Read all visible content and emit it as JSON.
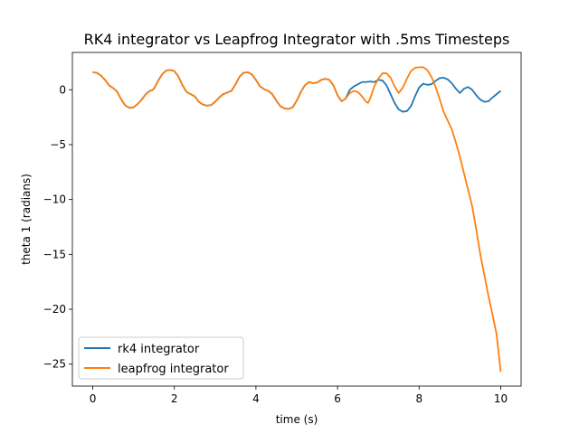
{
  "chart_data": {
    "type": "line",
    "title": "RK4 integrator vs Leapfrog Integrator with .5ms Timesteps",
    "xlabel": "time (s)",
    "ylabel": "theta 1  (radians)",
    "xlim": [
      -0.5,
      10.5
    ],
    "ylim": [
      -27.0,
      3.4
    ],
    "xticks": [
      0,
      2,
      4,
      6,
      8,
      10
    ],
    "yticks": [
      0,
      -5,
      -10,
      -15,
      -20,
      -25
    ],
    "xtick_labels": [
      "0",
      "2",
      "4",
      "6",
      "8",
      "10"
    ],
    "ytick_labels": [
      "0",
      "−5",
      "−10",
      "−15",
      "−20",
      "−25"
    ],
    "grid": false,
    "legend_position": "lower-left",
    "series": [
      {
        "name": "rk4 integrator",
        "color": "#1f77b4",
        "points": [
          [
            0,
            1.6
          ],
          [
            0.1,
            1.55
          ],
          [
            0.2,
            1.3
          ],
          [
            0.3,
            0.9
          ],
          [
            0.4,
            0.4
          ],
          [
            0.5,
            0.15
          ],
          [
            0.55,
            0.0
          ],
          [
            0.6,
            -0.2
          ],
          [
            0.7,
            -0.9
          ],
          [
            0.8,
            -1.45
          ],
          [
            0.9,
            -1.65
          ],
          [
            1.0,
            -1.6
          ],
          [
            1.1,
            -1.3
          ],
          [
            1.2,
            -0.9
          ],
          [
            1.3,
            -0.4
          ],
          [
            1.4,
            -0.1
          ],
          [
            1.45,
            -0.05
          ],
          [
            1.5,
            0.1
          ],
          [
            1.6,
            0.8
          ],
          [
            1.7,
            1.4
          ],
          [
            1.8,
            1.75
          ],
          [
            1.9,
            1.8
          ],
          [
            2.0,
            1.7
          ],
          [
            2.1,
            1.2
          ],
          [
            2.2,
            0.4
          ],
          [
            2.3,
            -0.2
          ],
          [
            2.4,
            -0.4
          ],
          [
            2.5,
            -0.6
          ],
          [
            2.6,
            -1.1
          ],
          [
            2.7,
            -1.35
          ],
          [
            2.8,
            -1.45
          ],
          [
            2.9,
            -1.4
          ],
          [
            3.0,
            -1.1
          ],
          [
            3.1,
            -0.7
          ],
          [
            3.2,
            -0.4
          ],
          [
            3.3,
            -0.25
          ],
          [
            3.4,
            -0.1
          ],
          [
            3.5,
            0.5
          ],
          [
            3.6,
            1.2
          ],
          [
            3.7,
            1.55
          ],
          [
            3.8,
            1.6
          ],
          [
            3.9,
            1.4
          ],
          [
            4.0,
            0.9
          ],
          [
            4.1,
            0.3
          ],
          [
            4.2,
            0.05
          ],
          [
            4.3,
            -0.1
          ],
          [
            4.4,
            -0.4
          ],
          [
            4.5,
            -1.0
          ],
          [
            4.6,
            -1.5
          ],
          [
            4.7,
            -1.7
          ],
          [
            4.8,
            -1.75
          ],
          [
            4.9,
            -1.6
          ],
          [
            5.0,
            -1.0
          ],
          [
            5.1,
            -0.2
          ],
          [
            5.2,
            0.4
          ],
          [
            5.3,
            0.7
          ],
          [
            5.4,
            0.6
          ],
          [
            5.5,
            0.65
          ],
          [
            5.6,
            0.9
          ],
          [
            5.7,
            1.0
          ],
          [
            5.8,
            0.9
          ],
          [
            5.9,
            0.4
          ],
          [
            6.0,
            -0.5
          ],
          [
            6.1,
            -1.05
          ],
          [
            6.2,
            -0.8
          ],
          [
            6.3,
            0.0
          ],
          [
            6.4,
            0.3
          ],
          [
            6.5,
            0.5
          ],
          [
            6.6,
            0.7
          ],
          [
            6.7,
            0.7
          ],
          [
            6.8,
            0.75
          ],
          [
            6.9,
            0.7
          ],
          [
            7.0,
            0.9
          ],
          [
            7.1,
            0.85
          ],
          [
            7.2,
            0.4
          ],
          [
            7.3,
            -0.4
          ],
          [
            7.4,
            -1.2
          ],
          [
            7.5,
            -1.8
          ],
          [
            7.6,
            -2.0
          ],
          [
            7.7,
            -1.95
          ],
          [
            7.8,
            -1.5
          ],
          [
            7.9,
            -0.6
          ],
          [
            8.0,
            0.2
          ],
          [
            8.1,
            0.55
          ],
          [
            8.2,
            0.45
          ],
          [
            8.3,
            0.5
          ],
          [
            8.4,
            0.8
          ],
          [
            8.5,
            1.05
          ],
          [
            8.6,
            1.1
          ],
          [
            8.7,
            0.95
          ],
          [
            8.8,
            0.6
          ],
          [
            8.9,
            0.1
          ],
          [
            9.0,
            -0.3
          ],
          [
            9.1,
            0.1
          ],
          [
            9.2,
            0.25
          ],
          [
            9.3,
            0.0
          ],
          [
            9.4,
            -0.5
          ],
          [
            9.5,
            -0.9
          ],
          [
            9.6,
            -1.1
          ],
          [
            9.7,
            -1.05
          ],
          [
            9.8,
            -0.7
          ],
          [
            9.9,
            -0.4
          ],
          [
            10.0,
            -0.1
          ]
        ]
      },
      {
        "name": "leapfrog integrator",
        "color": "#ff7f0e",
        "points": [
          [
            0,
            1.6
          ],
          [
            0.1,
            1.55
          ],
          [
            0.2,
            1.3
          ],
          [
            0.3,
            0.9
          ],
          [
            0.4,
            0.4
          ],
          [
            0.5,
            0.15
          ],
          [
            0.55,
            0.0
          ],
          [
            0.6,
            -0.2
          ],
          [
            0.7,
            -0.9
          ],
          [
            0.8,
            -1.45
          ],
          [
            0.9,
            -1.65
          ],
          [
            1.0,
            -1.6
          ],
          [
            1.1,
            -1.3
          ],
          [
            1.2,
            -0.9
          ],
          [
            1.3,
            -0.4
          ],
          [
            1.4,
            -0.1
          ],
          [
            1.45,
            -0.05
          ],
          [
            1.5,
            0.1
          ],
          [
            1.6,
            0.8
          ],
          [
            1.7,
            1.4
          ],
          [
            1.8,
            1.75
          ],
          [
            1.9,
            1.8
          ],
          [
            2.0,
            1.7
          ],
          [
            2.1,
            1.2
          ],
          [
            2.2,
            0.4
          ],
          [
            2.3,
            -0.2
          ],
          [
            2.4,
            -0.4
          ],
          [
            2.5,
            -0.6
          ],
          [
            2.6,
            -1.1
          ],
          [
            2.7,
            -1.35
          ],
          [
            2.8,
            -1.45
          ],
          [
            2.9,
            -1.4
          ],
          [
            3.0,
            -1.1
          ],
          [
            3.1,
            -0.7
          ],
          [
            3.2,
            -0.4
          ],
          [
            3.3,
            -0.25
          ],
          [
            3.4,
            -0.1
          ],
          [
            3.5,
            0.5
          ],
          [
            3.6,
            1.2
          ],
          [
            3.7,
            1.55
          ],
          [
            3.8,
            1.6
          ],
          [
            3.9,
            1.4
          ],
          [
            4.0,
            0.9
          ],
          [
            4.1,
            0.3
          ],
          [
            4.2,
            0.05
          ],
          [
            4.3,
            -0.1
          ],
          [
            4.4,
            -0.4
          ],
          [
            4.5,
            -1.0
          ],
          [
            4.6,
            -1.5
          ],
          [
            4.7,
            -1.7
          ],
          [
            4.8,
            -1.75
          ],
          [
            4.9,
            -1.6
          ],
          [
            5.0,
            -1.0
          ],
          [
            5.1,
            -0.2
          ],
          [
            5.2,
            0.4
          ],
          [
            5.3,
            0.7
          ],
          [
            5.4,
            0.6
          ],
          [
            5.5,
            0.65
          ],
          [
            5.6,
            0.9
          ],
          [
            5.7,
            1.0
          ],
          [
            5.8,
            0.9
          ],
          [
            5.9,
            0.4
          ],
          [
            6.0,
            -0.5
          ],
          [
            6.1,
            -1.05
          ],
          [
            6.2,
            -0.8
          ],
          [
            6.3,
            -0.3
          ],
          [
            6.4,
            -0.1
          ],
          [
            6.5,
            -0.2
          ],
          [
            6.6,
            -0.6
          ],
          [
            6.7,
            -1.1
          ],
          [
            6.75,
            -1.2
          ],
          [
            6.8,
            -0.8
          ],
          [
            6.9,
            0.3
          ],
          [
            7.0,
            1.0
          ],
          [
            7.1,
            1.5
          ],
          [
            7.2,
            1.5
          ],
          [
            7.3,
            1.1
          ],
          [
            7.4,
            0.3
          ],
          [
            7.5,
            -0.3
          ],
          [
            7.6,
            0.2
          ],
          [
            7.7,
            1.0
          ],
          [
            7.8,
            1.7
          ],
          [
            7.9,
            2.0
          ],
          [
            8.0,
            2.05
          ],
          [
            8.1,
            2.05
          ],
          [
            8.2,
            1.8
          ],
          [
            8.3,
            1.2
          ],
          [
            8.4,
            0.3
          ],
          [
            8.5,
            -0.8
          ],
          [
            8.6,
            -2.0
          ],
          [
            8.7,
            -2.8
          ],
          [
            8.8,
            -3.6
          ],
          [
            8.9,
            -4.8
          ],
          [
            9.0,
            -6.1
          ],
          [
            9.1,
            -7.6
          ],
          [
            9.2,
            -9.1
          ],
          [
            9.3,
            -10.6
          ],
          [
            9.4,
            -12.7
          ],
          [
            9.5,
            -15.0
          ],
          [
            9.6,
            -16.9
          ],
          [
            9.7,
            -18.8
          ],
          [
            9.8,
            -20.5
          ],
          [
            9.9,
            -22.3
          ],
          [
            10.0,
            -25.7
          ]
        ]
      }
    ]
  }
}
